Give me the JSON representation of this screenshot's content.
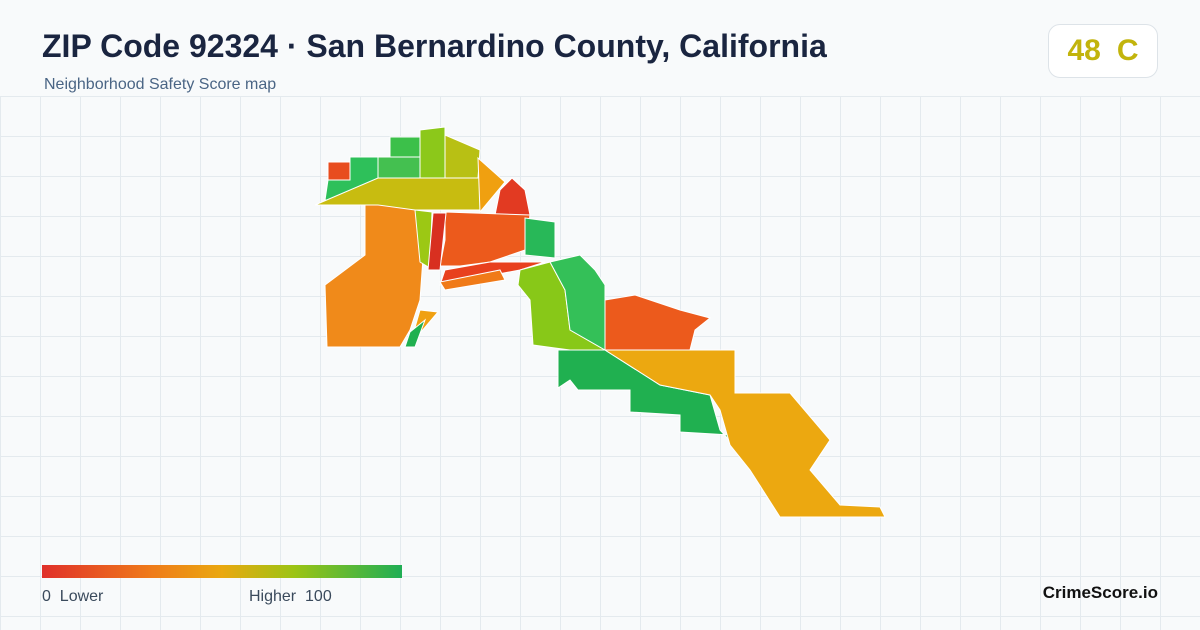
{
  "header": {
    "title": "ZIP Code 92324 · San Bernardino County, California",
    "subtitle": "Neighborhood Safety Score map"
  },
  "score": {
    "value": "48",
    "grade": "C"
  },
  "legend": {
    "min": "0",
    "low_label": "Lower",
    "high_label": "Higher",
    "max": "100"
  },
  "brand": "CrimeScore.io"
}
